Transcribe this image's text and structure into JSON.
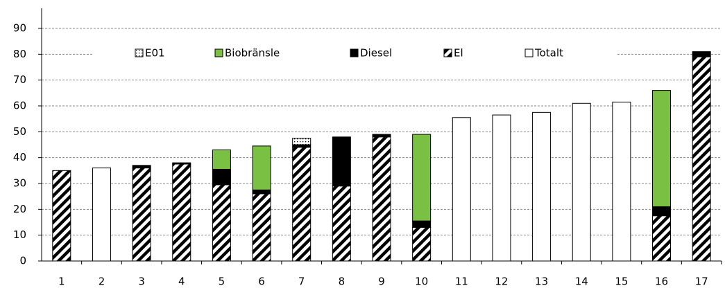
{
  "chart_data": {
    "type": "stacked_bar",
    "categories": [
      "1",
      "2",
      "3",
      "4",
      "5",
      "6",
      "7",
      "8",
      "9",
      "10",
      "11",
      "12",
      "13",
      "14",
      "15",
      "16",
      "17"
    ],
    "series": [
      {
        "name": "E01",
        "color": "#000000",
        "values": [
          0,
          0,
          0,
          0,
          0,
          0,
          2.5,
          0,
          0,
          0,
          0,
          0,
          0,
          0,
          0,
          0,
          0
        ]
      },
      {
        "name": "Biobränsle",
        "color": "#7ac143",
        "values": [
          0,
          0,
          0,
          0,
          7.5,
          17,
          0,
          0,
          0,
          33.5,
          0,
          0,
          0,
          0,
          0,
          45,
          0
        ]
      },
      {
        "name": "Diesel",
        "color": "#000000",
        "values": [
          0,
          0,
          1,
          0.5,
          6,
          1.5,
          1,
          19,
          1,
          2.5,
          0,
          0,
          0,
          0,
          0,
          3.5,
          2
        ]
      },
      {
        "name": "El",
        "color": "#000000",
        "values": [
          35,
          0,
          36,
          37.5,
          29.5,
          26,
          44,
          29,
          48,
          13,
          0,
          0,
          0,
          0,
          0,
          17.5,
          79
        ]
      },
      {
        "name": "Totalt",
        "color": "#ffffff",
        "values": [
          0,
          36,
          0,
          0,
          0,
          0,
          0,
          0,
          0,
          0,
          55.5,
          56.5,
          57.5,
          61,
          61.5,
          0,
          0
        ]
      }
    ],
    "ylim": [
      0,
      90
    ],
    "yticks": [
      0,
      10,
      20,
      30,
      40,
      50,
      60,
      70,
      80,
      90
    ],
    "grid": true
  }
}
